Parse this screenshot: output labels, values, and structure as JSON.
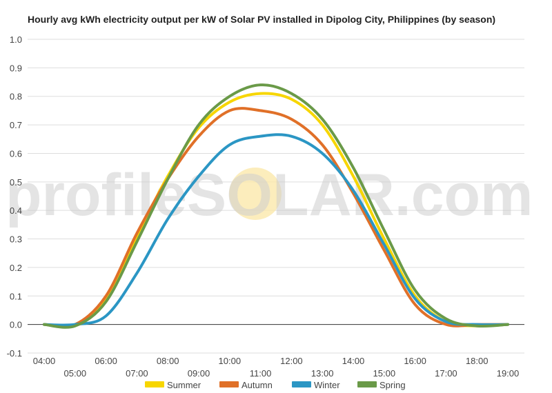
{
  "watermark": {
    "left": "profile",
    "solar": "SOLAR",
    "right": ".com"
  },
  "chart_data": {
    "type": "line",
    "title": "Hourly avg kWh electricity output per kW of Solar PV installed in Dipolog City, Philippines (by season)",
    "xlabel": "",
    "ylabel": "",
    "ylim": [
      -0.1,
      1.0
    ],
    "xlim": [
      4,
      19
    ],
    "grid": true,
    "legend": "bottom",
    "x_tick_labels": [
      "04:00",
      "05:00",
      "06:00",
      "07:00",
      "08:00",
      "09:00",
      "10:00",
      "11:00",
      "12:00",
      "13:00",
      "14:00",
      "15:00",
      "16:00",
      "17:00",
      "18:00",
      "19:00"
    ],
    "y_tick_labels": [
      "1.0",
      "0.9",
      "0.8",
      "0.7",
      "0.6",
      "0.5",
      "0.4",
      "0.3",
      "0.2",
      "0.1",
      "0.0",
      "-0.1"
    ],
    "x": [
      "04:00",
      "05:00",
      "06:00",
      "07:00",
      "08:00",
      "09:00",
      "10:00",
      "11:00",
      "12:00",
      "13:00",
      "14:00",
      "15:00",
      "16:00",
      "17:00",
      "18:00",
      "19:00"
    ],
    "series": [
      {
        "name": "Summer",
        "color": "#f7d600",
        "values": [
          0.0,
          0.0,
          0.09,
          0.31,
          0.52,
          0.69,
          0.78,
          0.81,
          0.79,
          0.7,
          0.52,
          0.3,
          0.1,
          0.01,
          -0.005,
          0.0
        ]
      },
      {
        "name": "Autumn",
        "color": "#e07028",
        "values": [
          0.0,
          0.0,
          0.1,
          0.32,
          0.51,
          0.66,
          0.75,
          0.75,
          0.72,
          0.63,
          0.46,
          0.26,
          0.07,
          0.0,
          0.0,
          0.0
        ]
      },
      {
        "name": "Winter",
        "color": "#2b96c4",
        "values": [
          0.0,
          0.0,
          0.03,
          0.18,
          0.37,
          0.52,
          0.63,
          0.66,
          0.66,
          0.6,
          0.47,
          0.28,
          0.09,
          0.01,
          0.0,
          0.0
        ]
      },
      {
        "name": "Spring",
        "color": "#6a9a48",
        "values": [
          0.0,
          -0.005,
          0.08,
          0.29,
          0.51,
          0.7,
          0.8,
          0.84,
          0.81,
          0.72,
          0.55,
          0.33,
          0.12,
          0.02,
          -0.005,
          0.0
        ]
      }
    ]
  }
}
